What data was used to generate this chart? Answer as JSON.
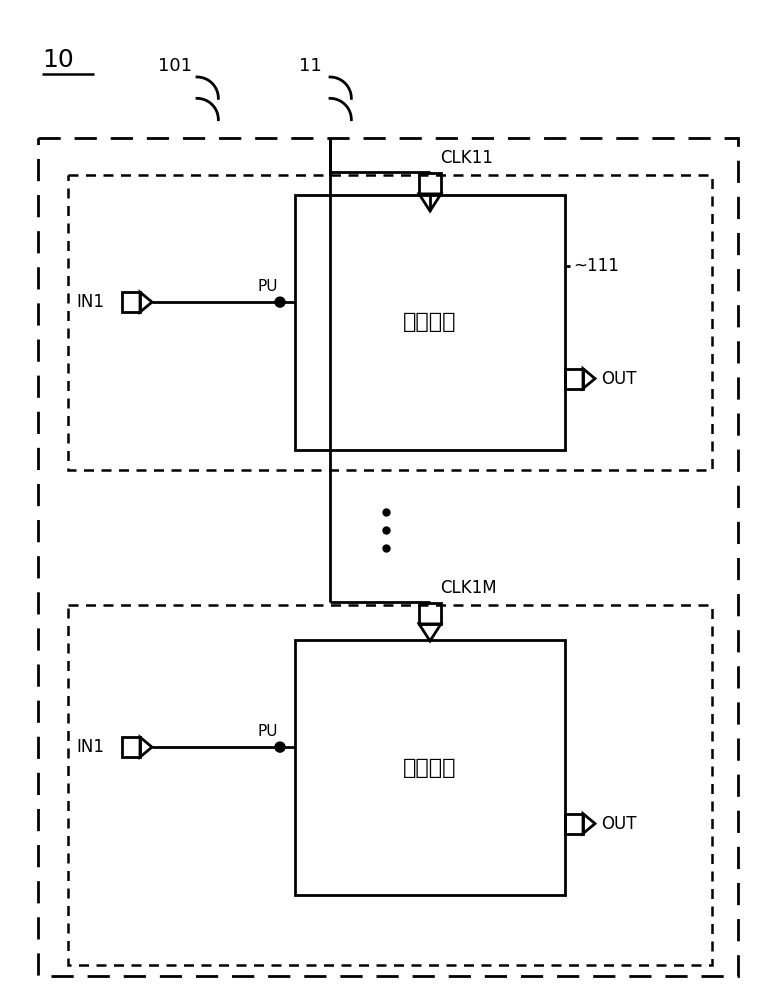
{
  "bg_color": "#ffffff",
  "figsize": [
    7.72,
    10.0
  ],
  "dpi": 100,
  "label_10": "10",
  "label_101": "101",
  "label_11": "11",
  "label_111": "111",
  "module_label": "输出模块",
  "clk1_label": "CLK11",
  "clk2_label": "CLK1M",
  "in_label": "IN1",
  "pu_label": "PU",
  "out_label": "OUT"
}
